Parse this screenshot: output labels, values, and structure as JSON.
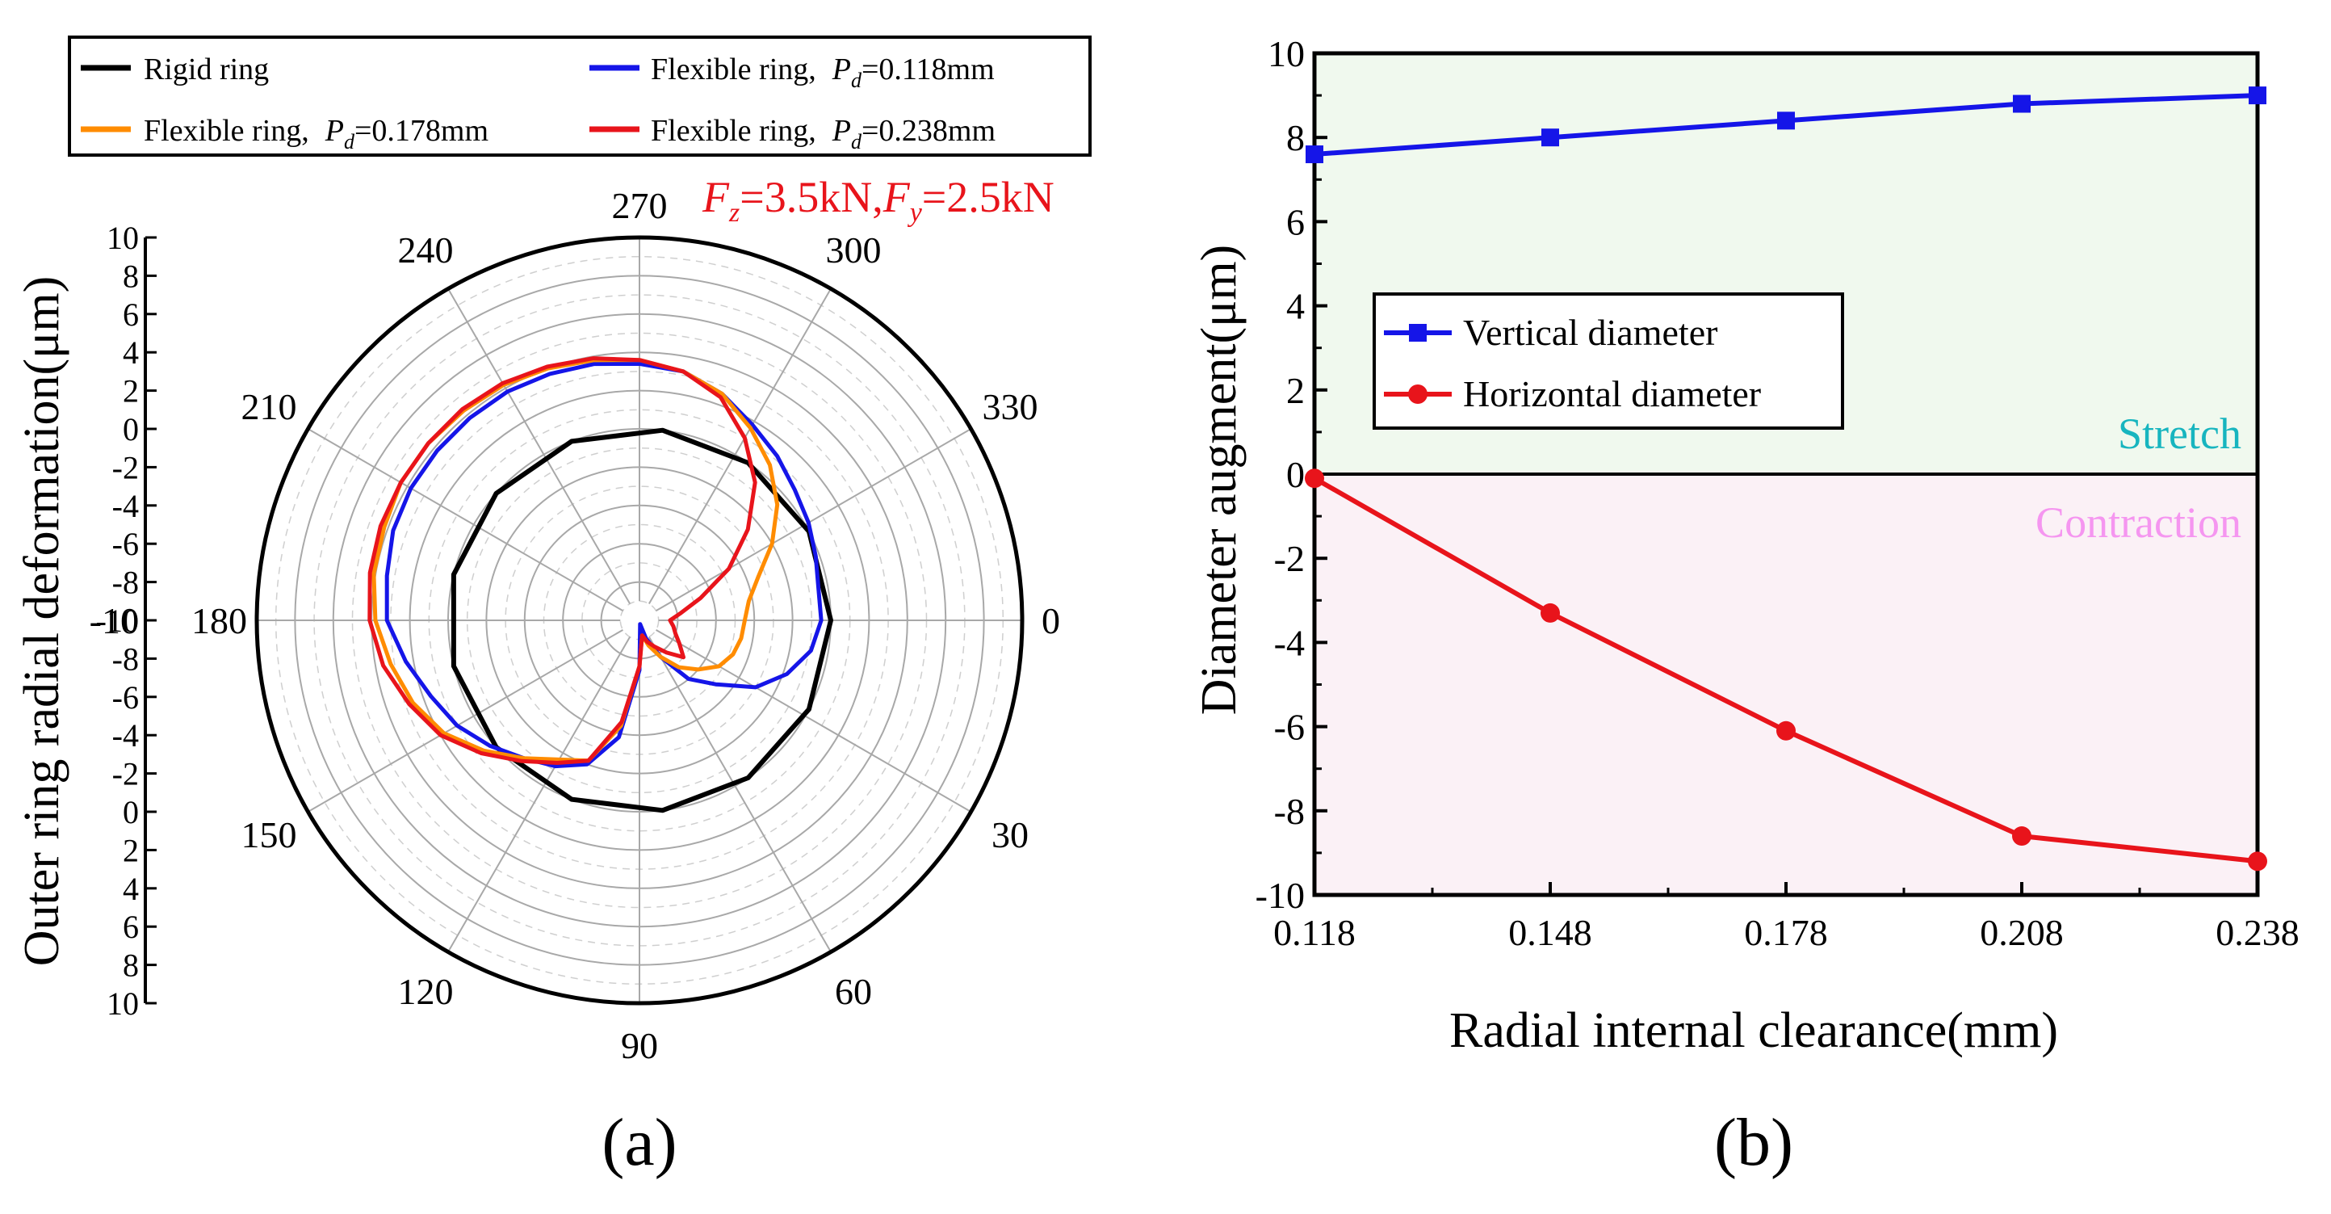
{
  "chart_data": [
    {
      "type": "polar-line",
      "panel_label": "(a)",
      "annotation": {
        "Fz": "3.5kN",
        "Fy": "2.5kN",
        "color": "#e8141b"
      },
      "ylabel": "Outer ring radial deformation(μm)",
      "radial_ticks_top": [
        "10",
        "8",
        "6",
        "4",
        "2",
        "0",
        "-2",
        "-4",
        "-6",
        "-8",
        "-10"
      ],
      "radial_ticks_bottom": [
        "-8",
        "-6",
        "-4",
        "-2",
        "0",
        "2",
        "4",
        "6",
        "8",
        "10"
      ],
      "radial_ticks_center": "-10",
      "radial_range": [
        -10,
        10
      ],
      "angle_labels": [
        "0",
        "30",
        "60",
        "90",
        "120",
        "150",
        "180",
        "210",
        "240",
        "270",
        "300",
        "330"
      ],
      "legend": {
        "rigid": "Rigid ring",
        "flexible": "Flexible ring,",
        "pd_prefix": "P",
        "pd_sub": "d",
        "pd_values": [
          "=0.118mm",
          "=0.178mm",
          "=0.238mm"
        ]
      },
      "series": [
        {
          "name": "Rigid ring",
          "color": "#000000",
          "values": [
            0,
            0,
            0,
            0,
            0,
            0,
            0,
            0,
            0,
            0,
            0,
            0,
            0
          ]
        },
        {
          "name": "Flexible ring, Pd=0.118mm",
          "color": "#1515e8",
          "values": [
            -0.5,
            -0.9,
            -1.8,
            -3.0,
            -4.8,
            -6.0,
            -7.8,
            -9.0,
            -9.8,
            -7.4,
            -3.8,
            -2.0,
            -1.2,
            -0.6,
            0.2,
            1.0,
            1.6,
            2.4,
            3.2,
            3.4,
            3.7,
            3.8,
            3.8,
            3.8,
            3.8,
            3.7,
            3.6,
            3.4,
            3.2,
            2.6,
            1.8,
            1.2,
            0.6,
            0.2,
            -0.2,
            -0.5
          ]
        },
        {
          "name": "Flexible ring, Pd=0.178mm",
          "color": "#ff8c00",
          "values": [
            -4.5,
            -4.6,
            -4.8,
            -5.2,
            -6.0,
            -6.8,
            -7.8,
            -8.6,
            -9.2,
            -7.6,
            -4.4,
            -2.2,
            -1.6,
            -0.6,
            0.6,
            1.8,
            2.6,
            3.2,
            3.8,
            4.1,
            4.2,
            4.4,
            4.4,
            4.3,
            4.2,
            4.0,
            3.8,
            3.6,
            3.2,
            2.6,
            1.6,
            0.6,
            -0.6,
            -2.0,
            -3.4,
            -4.2
          ]
        },
        {
          "name": "Flexible ring, Pd=0.238mm",
          "color": "#e8141b",
          "values": [
            -8.4,
            -8.2,
            -8.0,
            -7.6,
            -7.0,
            -7.8,
            -8.4,
            -8.8,
            -9.2,
            -7.6,
            -4.6,
            -2.2,
            -1.4,
            -0.4,
            0.8,
            2.0,
            2.8,
            3.6,
            4.1,
            4.3,
            4.4,
            4.4,
            4.4,
            4.4,
            4.3,
            4.1,
            3.9,
            3.6,
            3.2,
            2.4,
            1.0,
            -0.6,
            -2.6,
            -4.6,
            -6.6,
            -7.8
          ]
        }
      ]
    },
    {
      "type": "line",
      "panel_label": "(b)",
      "xlabel": "Radial internal clearance(mm)",
      "ylabel": "Diameter augment(μm)",
      "x": [
        0.118,
        0.148,
        0.178,
        0.208,
        0.238
      ],
      "xlim": [
        0.118,
        0.238
      ],
      "ylim": [
        -10,
        10
      ],
      "xticks": [
        "0.118",
        "0.148",
        "0.178",
        "0.208",
        "0.238"
      ],
      "yticks": [
        "-10",
        "-8",
        "-6",
        "-4",
        "-2",
        "0",
        "2",
        "4",
        "6",
        "8",
        "10"
      ],
      "region_labels": {
        "stretch": "Stretch",
        "contraction": "Contraction"
      },
      "region_colors": {
        "stretch": "#f0f9ee",
        "contraction": "#fbf1f6",
        "stretch_text": "#17b5bf",
        "contraction_text": "#f596f0"
      },
      "series": [
        {
          "name": "Vertical diameter",
          "color": "#1515e8",
          "marker": "square",
          "values": [
            7.6,
            8.0,
            8.4,
            8.8,
            9.0
          ]
        },
        {
          "name": "Horizontal diameter",
          "color": "#e8141b",
          "marker": "circle",
          "values": [
            -0.1,
            -3.3,
            -6.1,
            -8.6,
            -9.2
          ]
        }
      ]
    }
  ]
}
